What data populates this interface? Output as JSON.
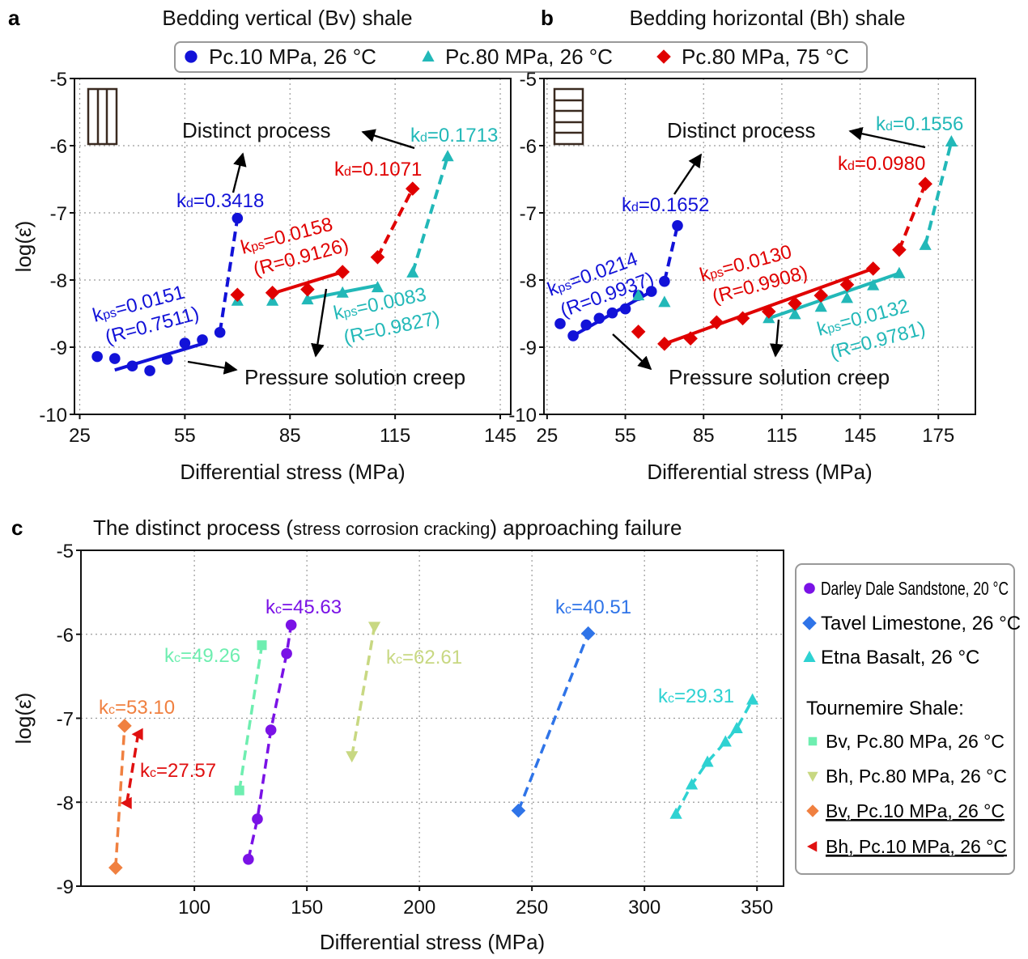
{
  "panels": {
    "a": {
      "letter": "a",
      "title": "Bedding vertical (Bv) shale"
    },
    "b": {
      "letter": "b",
      "title": "Bedding horizontal (Bh) shale"
    },
    "c": {
      "letter": "c",
      "title_pre": "The distinct process (",
      "title_small": "stress corrosion cracking",
      "title_post": ") approaching failure"
    }
  },
  "top_legend": [
    {
      "label": "Pc.10 MPa, 26 °C",
      "marker": "circle",
      "color": "#1212d8"
    },
    {
      "label": "Pc.80 MPa, 26 °C",
      "marker": "triangle-up",
      "color": "#22b8b8"
    },
    {
      "label": "Pc.80 MPa, 75 °C",
      "marker": "diamond",
      "color": "#e00000"
    }
  ],
  "annotations": {
    "a": {
      "distinct": "Distinct process",
      "pressure": "Pressure solution creep",
      "kd_blue": {
        "k": "k",
        "sub": "d",
        "val": "=0.3418"
      },
      "kd_cyan": {
        "k": "k",
        "sub": "d",
        "val": "=0.1713"
      },
      "kd_red": {
        "k": "k",
        "sub": "d",
        "val": "=0.1071"
      },
      "kps_blue": {
        "k": "k",
        "sub": "ps",
        "val": "=0.0151",
        "r": "(R=0.7511)"
      },
      "kps_red": {
        "k": "k",
        "sub": "ps",
        "val": "=0.0158",
        "r": "(R=0.9126)"
      },
      "kps_cyan": {
        "k": "k",
        "sub": "ps",
        "val": "=0.0083",
        "r": "(R=0.9827)"
      }
    },
    "b": {
      "distinct": "Distinct process",
      "pressure": "Pressure solution creep",
      "kd_blue": {
        "k": "k",
        "sub": "d",
        "val": "=0.1652"
      },
      "kd_cyan": {
        "k": "k",
        "sub": "d",
        "val": "=0.1556"
      },
      "kd_red": {
        "k": "k",
        "sub": "d",
        "val": "=0.0980"
      },
      "kps_blue": {
        "k": "k",
        "sub": "ps",
        "val": "=0.0214",
        "r": "(R=0.9937)"
      },
      "kps_red": {
        "k": "k",
        "sub": "ps",
        "val": "=0.0130",
        "r": "(R=0.9908)"
      },
      "kps_cyan": {
        "k": "k",
        "sub": "ps",
        "val": "=0.0132",
        "r": "(R=0.9781)"
      }
    },
    "c": {
      "purple": {
        "k": "k",
        "sub": "c",
        "val": "=45.63"
      },
      "mint": {
        "k": "k",
        "sub": "c",
        "val": "=49.26"
      },
      "yellow": {
        "k": "k",
        "sub": "c",
        "val": "=62.61"
      },
      "orange": {
        "k": "k",
        "sub": "c",
        "val": "=53.10"
      },
      "red": {
        "k": "k",
        "sub": "c",
        "val": "=27.57"
      },
      "blue": {
        "k": "k",
        "sub": "c",
        "val": "=40.51"
      },
      "cyan": {
        "k": "k",
        "sub": "c",
        "val": "=29.31"
      }
    }
  },
  "c_legend": {
    "items": [
      {
        "label": "Darley Dale Sandstone, 20 °C",
        "marker": "circle",
        "color": "#7a12e6"
      },
      {
        "label": "Tavel Limestone, 26 °C",
        "marker": "diamond",
        "color": "#2f74e8"
      },
      {
        "label": "Etna Basalt, 26 °C",
        "marker": "triangle-up",
        "color": "#2ed2d2"
      }
    ],
    "heading": "Tournemire Shale:",
    "shale_items": [
      {
        "label": "Bv, Pc.80 MPa, 26 °C",
        "marker": "square",
        "color": "#6eeeb0",
        "underline": false
      },
      {
        "label": "Bh, Pc.80 MPa, 26 °C",
        "marker": "triangle-down",
        "color": "#c8d882",
        "underline": false
      },
      {
        "label": "Bv, Pc.10 MPa, 26 °C",
        "marker": "diamond",
        "color": "#f08040",
        "underline": true
      },
      {
        "label": "Bh, Pc.10 MPa, 26 °C",
        "marker": "triangle-left",
        "color": "#e01010",
        "underline": true
      }
    ]
  },
  "chart_data": [
    {
      "type": "scatter",
      "panel": "a",
      "title": "Bedding vertical (Bv) shale",
      "xlabel": "Differential stress (MPa)",
      "ylabel": "log(ε̇)",
      "xlim": [
        23.5,
        148
      ],
      "ylim": [
        -10,
        -5
      ],
      "xticks": [
        25,
        55,
        85,
        115,
        145
      ],
      "yticks": [
        -5,
        -6,
        -7,
        -8,
        -9,
        -10
      ],
      "grid": true,
      "series": [
        {
          "name": "Pc.10 MPa, 26 °C",
          "marker": "circle",
          "color": "#1212d8",
          "x": [
            30,
            35,
            40,
            45,
            50,
            55,
            60,
            65,
            70
          ],
          "y": [
            -9.14,
            -9.17,
            -9.28,
            -9.35,
            -9.18,
            -8.94,
            -8.89,
            -8.78,
            -7.08
          ],
          "fit_solid": [
            [
              35,
              -9.34
            ],
            [
              60,
              -8.95
            ]
          ],
          "fit_dashed": [
            [
              65,
              -8.78
            ],
            [
              70,
              -7.08
            ]
          ]
        },
        {
          "name": "Pc.80 MPa, 26 °C",
          "marker": "triangle-up",
          "color": "#22b8b8",
          "x": [
            70,
            80,
            90,
            100,
            110,
            120,
            130
          ],
          "y": [
            -8.31,
            -8.31,
            -8.29,
            -8.19,
            -8.11,
            -7.89,
            -6.16
          ],
          "fit_solid": [
            [
              90,
              -8.28
            ],
            [
              110,
              -8.08
            ]
          ],
          "fit_dashed": [
            [
              120,
              -7.89
            ],
            [
              130,
              -6.16
            ]
          ]
        },
        {
          "name": "Pc.80 MPa, 75 °C",
          "marker": "diamond",
          "color": "#e00000",
          "x": [
            70,
            80,
            90,
            100,
            110,
            120
          ],
          "y": [
            -8.22,
            -8.19,
            -8.14,
            -7.88,
            -7.66,
            -6.64
          ],
          "fit_solid": [
            [
              80,
              -8.2
            ],
            [
              100,
              -7.88
            ]
          ],
          "fit_dashed": [
            [
              110,
              -7.66
            ],
            [
              120,
              -6.64
            ]
          ]
        }
      ]
    },
    {
      "type": "scatter",
      "panel": "b",
      "title": "Bedding horizontal (Bh) shale",
      "xlabel": "Differential stress (MPa)",
      "ylabel": "",
      "xlim": [
        23.8,
        189.2
      ],
      "ylim": [
        -10,
        -5
      ],
      "xticks": [
        25,
        55,
        85,
        115,
        145,
        175
      ],
      "yticks": [
        -5,
        -6,
        -7,
        -8,
        -9,
        -10
      ],
      "grid": true,
      "series": [
        {
          "name": "Pc.10 MPa, 26 °C",
          "marker": "circle",
          "color": "#1212d8",
          "x": [
            30,
            35,
            40,
            45,
            50,
            55,
            60,
            65,
            70,
            75
          ],
          "y": [
            -8.65,
            -8.83,
            -8.67,
            -8.57,
            -8.49,
            -8.43,
            -8.23,
            -8.17,
            -8.02,
            -7.19
          ],
          "fit_solid": [
            [
              35,
              -8.83
            ],
            [
              65,
              -8.17
            ]
          ],
          "fit_dashed": [
            [
              70,
              -8.02
            ],
            [
              75,
              -7.19
            ]
          ]
        },
        {
          "name": "Pc.80 MPa, 26 °C",
          "marker": "triangle-up",
          "color": "#22b8b8",
          "x": [
            60,
            70,
            110,
            120,
            130,
            140,
            150,
            160,
            170,
            180
          ],
          "y": [
            -8.23,
            -8.33,
            -8.57,
            -8.51,
            -8.4,
            -8.27,
            -8.08,
            -7.9,
            -7.48,
            -5.94
          ],
          "fit_solid": [
            [
              110,
              -8.57
            ],
            [
              160,
              -7.9
            ]
          ],
          "fit_dashed": [
            [
              170,
              -7.48
            ],
            [
              180,
              -5.94
            ]
          ]
        },
        {
          "name": "Pc.80 MPa, 75 °C",
          "marker": "diamond",
          "color": "#e00000",
          "x": [
            60,
            70,
            80,
            90,
            100,
            110,
            120,
            130,
            140,
            150,
            160,
            170
          ],
          "y": [
            -8.77,
            -8.95,
            -8.87,
            -8.63,
            -8.57,
            -8.47,
            -8.35,
            -8.23,
            -8.07,
            -7.83,
            -7.55,
            -6.57
          ],
          "fit_solid": [
            [
              70,
              -8.95
            ],
            [
              150,
              -7.83
            ]
          ],
          "fit_dashed": [
            [
              160,
              -7.55
            ],
            [
              170,
              -6.57
            ]
          ]
        }
      ]
    },
    {
      "type": "scatter",
      "panel": "c",
      "title": "The distinct process (stress corrosion cracking) approaching failure",
      "xlabel": "Differential stress (MPa)",
      "ylabel": "log(ε̇)",
      "xlim": [
        49.6,
        361.8
      ],
      "ylim": [
        -9,
        -5
      ],
      "xticks": [
        100,
        150,
        200,
        250,
        300,
        350
      ],
      "yticks": [
        -5,
        -6,
        -7,
        -8,
        -9
      ],
      "grid": true,
      "legend": "right",
      "series": [
        {
          "name": "Darley Dale Sandstone, 20 °C",
          "marker": "circle",
          "color": "#7a12e6",
          "x": [
            124,
            128,
            134,
            141,
            143
          ],
          "y": [
            -8.68,
            -8.2,
            -7.14,
            -6.23,
            -5.89
          ]
        },
        {
          "name": "Tavel Limestone, 26 °C",
          "marker": "diamond",
          "color": "#2f74e8",
          "x": [
            244,
            275
          ],
          "y": [
            -8.1,
            -5.99
          ]
        },
        {
          "name": "Etna Basalt, 26 °C",
          "marker": "triangle-up",
          "color": "#2ed2d2",
          "x": [
            314,
            321,
            328,
            336,
            341,
            348
          ],
          "y": [
            -8.14,
            -7.79,
            -7.52,
            -7.28,
            -7.12,
            -6.78
          ]
        },
        {
          "name": "Bv, Pc.80 MPa, 26 °C",
          "marker": "square",
          "color": "#6eeeb0",
          "x": [
            120,
            130
          ],
          "y": [
            -7.86,
            -6.13
          ]
        },
        {
          "name": "Bh, Pc.80 MPa, 26 °C",
          "marker": "triangle-down",
          "color": "#c8d882",
          "x": [
            170,
            180
          ],
          "y": [
            -7.45,
            -5.91
          ]
        },
        {
          "name": "Bv, Pc.10 MPa, 26 °C",
          "marker": "diamond",
          "color": "#f08040",
          "x": [
            65,
            69
          ],
          "y": [
            -8.78,
            -7.09
          ]
        },
        {
          "name": "Bh, Pc.10 MPa, 26 °C",
          "marker": "triangle-left",
          "color": "#e01010",
          "x": [
            70,
            75
          ],
          "y": [
            -8.01,
            -7.19
          ]
        }
      ]
    }
  ]
}
